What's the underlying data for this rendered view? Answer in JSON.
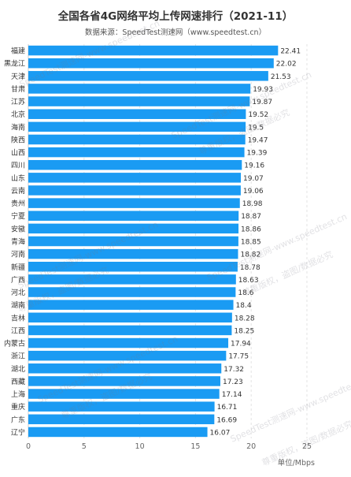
{
  "title": "全国各省4G网络平均上传网速排行（2021-11）",
  "subtitle": "数据来源：SpeedTest测速网（www.speedtest.cn）",
  "watermark": {
    "line1": "SpeedTest测速网-www.speedtest.cn",
    "line2": "尊重版权，盗图/数据必究"
  },
  "colors": {
    "bar": "#1a9bf3",
    "grid": "#e3e3e3",
    "text": "#333333"
  },
  "chart_data": {
    "type": "bar",
    "orientation": "horizontal",
    "title": "全国各省4G网络平均上传网速排行（2021-11）",
    "xlabel": "单位/Mbps",
    "xlim": [
      0,
      25
    ],
    "xticks": [
      0,
      5,
      10,
      15,
      20,
      25
    ],
    "grid": true,
    "categories": [
      "福建",
      "黑龙江",
      "天津",
      "甘肃",
      "江苏",
      "北京",
      "海南",
      "陕西",
      "山西",
      "四川",
      "山东",
      "云南",
      "贵州",
      "宁夏",
      "安徽",
      "青海",
      "河南",
      "新疆",
      "广西",
      "河北",
      "湖南",
      "吉林",
      "江西",
      "内蒙古",
      "浙江",
      "湖北",
      "西藏",
      "上海",
      "重庆",
      "广东",
      "辽宁"
    ],
    "values": [
      22.41,
      22.02,
      21.53,
      19.93,
      19.87,
      19.52,
      19.5,
      19.47,
      19.39,
      19.16,
      19.07,
      19.06,
      18.98,
      18.87,
      18.86,
      18.85,
      18.82,
      18.78,
      18.63,
      18.6,
      18.4,
      18.28,
      18.25,
      17.94,
      17.75,
      17.32,
      17.23,
      17.14,
      16.71,
      16.69,
      16.07
    ]
  }
}
